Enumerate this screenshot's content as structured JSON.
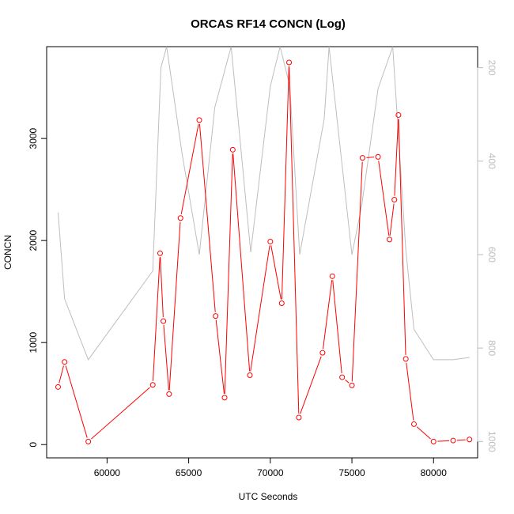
{
  "chart_data": {
    "type": "line",
    "title": "ORCAS RF14 CONCN (Log)",
    "xlabel": "UTC Seconds",
    "ylabel": "CONCN",
    "xlim": [
      56300,
      82700
    ],
    "ylim": [
      -130,
      3900
    ],
    "y2lim": [
      1035,
      155
    ],
    "x_ticks": [
      60000,
      65000,
      70000,
      75000,
      80000
    ],
    "y_ticks": [
      0,
      1000,
      2000,
      3000
    ],
    "y2_ticks": [
      200,
      400,
      600,
      800,
      1000
    ],
    "grid": false,
    "series": [
      {
        "axis": "left",
        "color": "#ff0000",
        "marker": "circle",
        "x": [
          57000,
          57400,
          58850,
          62800,
          63250,
          63450,
          63800,
          64500,
          65650,
          66650,
          67200,
          67700,
          68750,
          70000,
          70700,
          71150,
          71750,
          73200,
          73800,
          74400,
          75000,
          75650,
          76600,
          77300,
          77600,
          77850,
          78300,
          78800,
          80000,
          81200,
          82200
        ],
        "y": [
          565,
          810,
          30,
          585,
          1875,
          1210,
          495,
          2220,
          3180,
          1260,
          460,
          2890,
          680,
          1990,
          1385,
          3745,
          265,
          900,
          1650,
          660,
          580,
          2810,
          2820,
          2010,
          2400,
          3230,
          840,
          200,
          30,
          40,
          50
        ]
      },
      {
        "axis": "right",
        "color": "#bebebe",
        "marker": "none",
        "x": [
          57000,
          57400,
          58850,
          62800,
          63300,
          63650,
          64600,
          65650,
          66600,
          67600,
          68000,
          68800,
          70000,
          70600,
          71200,
          71800,
          73300,
          73600,
          75000,
          75600,
          76600,
          77500,
          78300,
          78800,
          80000,
          81200,
          82200
        ],
        "y": [
          510,
          695,
          825,
          635,
          200,
          155,
          385,
          600,
          285,
          155,
          300,
          595,
          240,
          155,
          240,
          600,
          310,
          155,
          600,
          495,
          245,
          155,
          590,
          760,
          825,
          825,
          820
        ]
      }
    ]
  }
}
